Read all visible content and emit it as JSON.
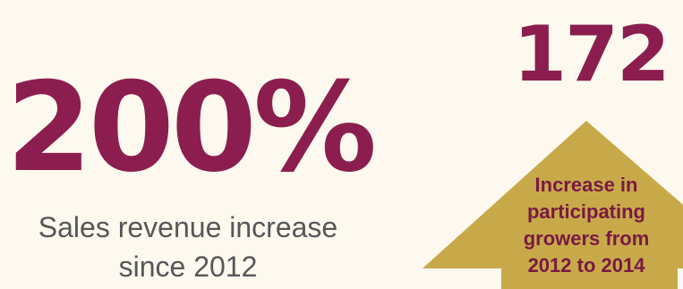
{
  "stats": {
    "revenue": {
      "value": "200%",
      "label": "Sales revenue increase since 2012"
    },
    "growers": {
      "value": "172",
      "label": "Increase in participating growers from 2012 to 2014"
    }
  },
  "colors": {
    "background": "#fdf9ee",
    "accent": "#8b1e4f",
    "arrow": "#c8a94a",
    "text_gray": "#555759"
  }
}
